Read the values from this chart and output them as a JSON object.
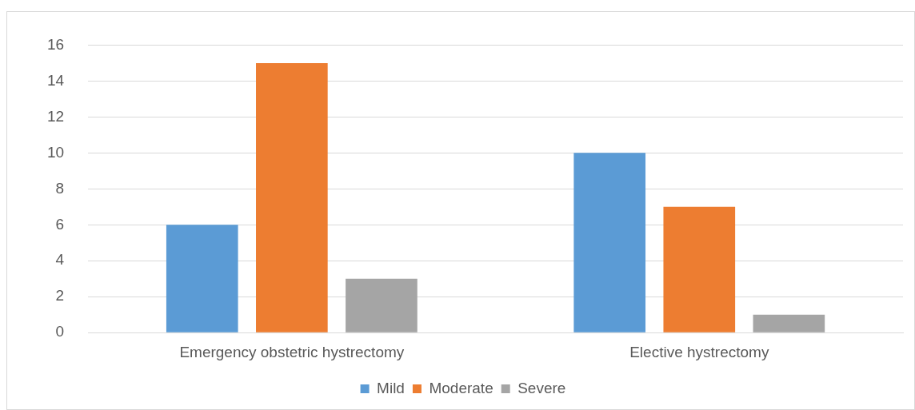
{
  "chart_data": {
    "type": "bar",
    "categories": [
      "Emergency obstetric hystrectomy",
      "Elective hystrectomy"
    ],
    "series": [
      {
        "name": "Mild",
        "color": "#5b9bd5",
        "values": [
          6,
          10
        ]
      },
      {
        "name": "Moderate",
        "color": "#ed7d31",
        "values": [
          15,
          7
        ]
      },
      {
        "name": "Severe",
        "color": "#a5a5a5",
        "values": [
          3,
          1
        ]
      }
    ],
    "ylim": [
      0,
      16
    ],
    "yticks": [
      0,
      2,
      4,
      6,
      8,
      10,
      12,
      14,
      16
    ],
    "grid": "y",
    "legend": "bottom"
  }
}
